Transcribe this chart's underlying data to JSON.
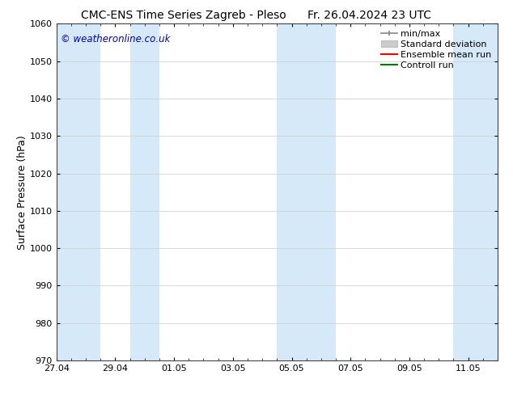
{
  "title_left": "CMC-ENS Time Series Zagreb - Pleso",
  "title_right": "Fr. 26.04.2024 23 UTC",
  "ylabel": "Surface Pressure (hPa)",
  "ylim": [
    970,
    1060
  ],
  "yticks": [
    970,
    980,
    990,
    1000,
    1010,
    1020,
    1030,
    1040,
    1050,
    1060
  ],
  "xlim_start": 0.0,
  "xlim_end": 15.0,
  "xtick_labels": [
    "27.04",
    "29.04",
    "01.05",
    "03.05",
    "05.05",
    "07.05",
    "09.05",
    "11.05"
  ],
  "xtick_positions": [
    0,
    2,
    4,
    6,
    8,
    10,
    12,
    14
  ],
  "watermark": "© weatheronline.co.uk",
  "watermark_color": "#0000bb",
  "background_color": "#ffffff",
  "shaded_bands": [
    {
      "x_start": 0.0,
      "x_end": 1.5,
      "color": "#d6e9f8"
    },
    {
      "x_start": 2.5,
      "x_end": 3.5,
      "color": "#d6e9f8"
    },
    {
      "x_start": 7.5,
      "x_end": 9.5,
      "color": "#d6e9f8"
    },
    {
      "x_start": 13.5,
      "x_end": 15.0,
      "color": "#d6e9f8"
    }
  ],
  "legend_entries": [
    {
      "label": "min/max",
      "color": "#aaaaaa",
      "style": "minmax"
    },
    {
      "label": "Standard deviation",
      "color": "#cccccc",
      "style": "fill"
    },
    {
      "label": "Ensemble mean run",
      "color": "#ff0000",
      "style": "line"
    },
    {
      "label": "Controll run",
      "color": "#008000",
      "style": "line"
    }
  ],
  "grid_color": "#cccccc",
  "title_fontsize": 10,
  "tick_fontsize": 8,
  "legend_fontsize": 8,
  "ylabel_fontsize": 9
}
